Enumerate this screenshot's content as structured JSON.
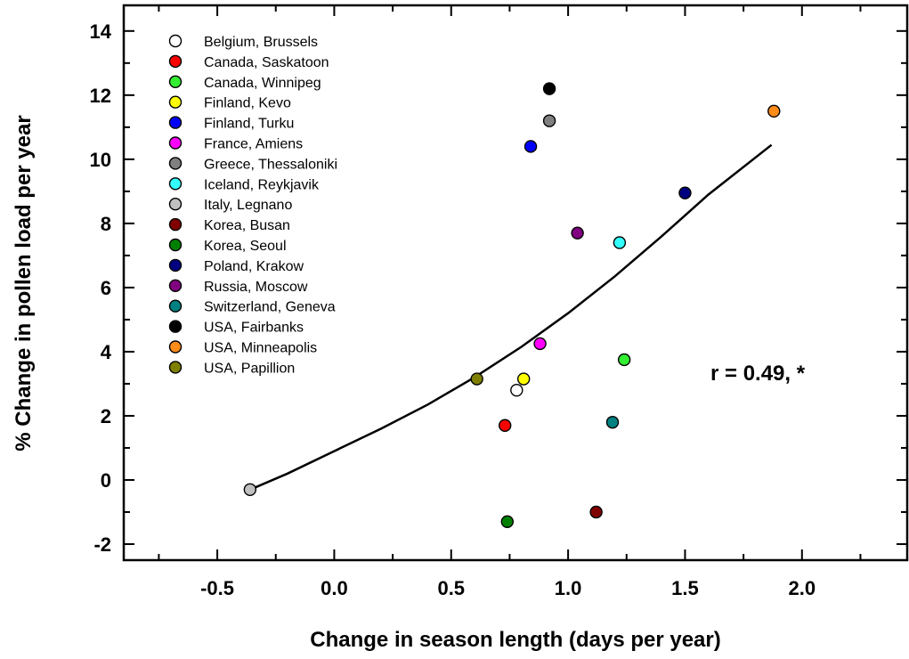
{
  "chart_data": {
    "type": "scatter",
    "xlabel": "Change in season length (days per year)",
    "ylabel": "% Change in pollen load per year",
    "xlim": [
      -0.9,
      2.45
    ],
    "ylim": [
      -2.5,
      14.8
    ],
    "x_ticks": [
      -0.5,
      0.0,
      0.5,
      1.0,
      1.5,
      2.0
    ],
    "x_tick_labels": [
      "-0.5",
      "0.0",
      "0.5",
      "1.0",
      "1.5",
      "2.0"
    ],
    "y_ticks": [
      -2,
      0,
      2,
      4,
      6,
      8,
      10,
      12,
      14
    ],
    "y_tick_labels": [
      "-2",
      "0",
      "2",
      "4",
      "6",
      "8",
      "10",
      "12",
      "14"
    ],
    "grid": false,
    "legend_position": "top-left",
    "annotation": "r = 0.49, *",
    "series": [
      {
        "name": "Belgium, Brussels",
        "color": "#ffffff",
        "points": [
          {
            "x": 0.78,
            "y": 2.8
          }
        ]
      },
      {
        "name": "Canada, Saskatoon",
        "color": "#ff0000",
        "points": [
          {
            "x": 0.73,
            "y": 1.7
          }
        ]
      },
      {
        "name": "Canada, Winnipeg",
        "color": "#33ee33",
        "points": [
          {
            "x": 1.24,
            "y": 3.75
          }
        ]
      },
      {
        "name": "Finland, Kevo",
        "color": "#ffff00",
        "points": [
          {
            "x": 0.81,
            "y": 3.15
          }
        ]
      },
      {
        "name": "Finland, Turku",
        "color": "#0000ff",
        "points": [
          {
            "x": 0.84,
            "y": 10.4
          }
        ]
      },
      {
        "name": "France, Amiens",
        "color": "#ff00ff",
        "points": [
          {
            "x": 0.88,
            "y": 4.25
          }
        ]
      },
      {
        "name": "Greece, Thessaloniki",
        "color": "#808080",
        "points": [
          {
            "x": 0.92,
            "y": 11.2
          }
        ]
      },
      {
        "name": "Iceland, Reykjavik",
        "color": "#33ffff",
        "points": [
          {
            "x": 1.22,
            "y": 7.4
          }
        ]
      },
      {
        "name": "Italy, Legnano",
        "color": "#c0c0c0",
        "points": [
          {
            "x": -0.36,
            "y": -0.3
          }
        ]
      },
      {
        "name": "Korea, Busan",
        "color": "#800000",
        "points": [
          {
            "x": 1.12,
            "y": -1.0
          }
        ]
      },
      {
        "name": "Korea, Seoul",
        "color": "#008000",
        "points": [
          {
            "x": 0.74,
            "y": -1.3
          }
        ]
      },
      {
        "name": "Poland, Krakow",
        "color": "#000080",
        "points": [
          {
            "x": 1.5,
            "y": 8.95
          }
        ]
      },
      {
        "name": "Russia, Moscow",
        "color": "#800080",
        "points": [
          {
            "x": 1.04,
            "y": 7.7
          }
        ]
      },
      {
        "name": "Switzerland, Geneva",
        "color": "#008080",
        "points": [
          {
            "x": 1.19,
            "y": 1.8
          }
        ]
      },
      {
        "name": "USA, Fairbanks",
        "color": "#000000",
        "points": [
          {
            "x": 0.92,
            "y": 12.2
          }
        ]
      },
      {
        "name": "USA, Minneapolis",
        "color": "#ff8c1a",
        "points": [
          {
            "x": 1.88,
            "y": 11.5
          }
        ]
      },
      {
        "name": "USA, Papillion",
        "color": "#808000",
        "points": [
          {
            "x": 0.61,
            "y": 3.15
          }
        ]
      }
    ],
    "fit_curve": {
      "x": [
        -0.36,
        -0.2,
        0.0,
        0.2,
        0.4,
        0.6,
        0.8,
        1.0,
        1.2,
        1.4,
        1.6,
        1.87
      ],
      "y": [
        -0.3,
        0.2,
        0.9,
        1.6,
        2.35,
        3.2,
        4.15,
        5.2,
        6.35,
        7.6,
        8.9,
        10.45
      ]
    }
  }
}
